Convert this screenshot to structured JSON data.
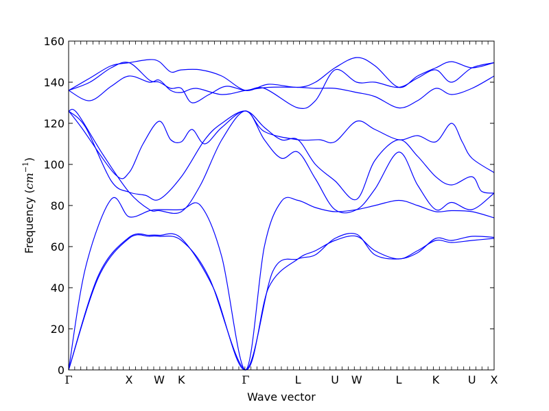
{
  "chart_data": {
    "type": "line",
    "title": "",
    "xlabel": "Wave vector",
    "ylabel": {
      "prefix": "Frequency (",
      "unit_base": "cm",
      "unit_exp": "−1",
      "suffix": ")"
    },
    "ylim": [
      0,
      160
    ],
    "xlim": [
      0,
      1
    ],
    "yticks": [
      0,
      20,
      40,
      60,
      80,
      100,
      120,
      140,
      160
    ],
    "grid": false,
    "legend": "none",
    "line_color": "#0000ff",
    "high_symmetry_points": [
      {
        "label": "Γ",
        "x": 0.0
      },
      {
        "label": "X",
        "x": 0.142
      },
      {
        "label": "W",
        "x": 0.213
      },
      {
        "label": "K",
        "x": 0.265
      },
      {
        "label": "Γ",
        "x": 0.416
      },
      {
        "label": "L",
        "x": 0.539
      },
      {
        "label": "U",
        "x": 0.626
      },
      {
        "label": "W",
        "x": 0.677
      },
      {
        "label": "L",
        "x": 0.776
      },
      {
        "label": "K",
        "x": 0.863
      },
      {
        "label": "U",
        "x": 0.948
      },
      {
        "label": "X",
        "x": 1.0
      }
    ],
    "series": [
      {
        "values": [
          [
            0,
            0
          ],
          [
            0.07,
            45
          ],
          [
            0.142,
            64
          ],
          [
            0.19,
            65
          ],
          [
            0.213,
            65
          ],
          [
            0.265,
            63
          ],
          [
            0.33,
            45
          ],
          [
            0.416,
            0
          ],
          [
            0.47,
            40
          ],
          [
            0.539,
            54
          ],
          [
            0.58,
            58
          ],
          [
            0.626,
            63
          ],
          [
            0.677,
            65
          ],
          [
            0.72,
            58
          ],
          [
            0.776,
            54
          ],
          [
            0.82,
            58
          ],
          [
            0.863,
            63
          ],
          [
            0.9,
            62
          ],
          [
            0.948,
            63
          ],
          [
            1.0,
            64
          ]
        ]
      },
      {
        "values": [
          [
            0,
            0
          ],
          [
            0.07,
            46
          ],
          [
            0.142,
            64.5
          ],
          [
            0.19,
            65.5
          ],
          [
            0.213,
            65.5
          ],
          [
            0.265,
            64
          ],
          [
            0.34,
            40
          ],
          [
            0.416,
            0
          ],
          [
            0.48,
            48
          ],
          [
            0.539,
            54
          ],
          [
            0.58,
            56
          ],
          [
            0.626,
            64
          ],
          [
            0.677,
            66
          ],
          [
            0.72,
            56
          ],
          [
            0.776,
            54
          ],
          [
            0.82,
            57
          ],
          [
            0.863,
            64
          ],
          [
            0.9,
            63
          ],
          [
            0.948,
            65
          ],
          [
            1.0,
            64.5
          ]
        ]
      },
      {
        "values": [
          [
            0,
            0
          ],
          [
            0.04,
            50
          ],
          [
            0.1,
            83
          ],
          [
            0.142,
            74.5
          ],
          [
            0.19,
            77.5
          ],
          [
            0.213,
            78
          ],
          [
            0.265,
            78
          ],
          [
            0.31,
            80
          ],
          [
            0.36,
            55
          ],
          [
            0.416,
            0
          ],
          [
            0.46,
            60
          ],
          [
            0.5,
            82
          ],
          [
            0.539,
            82.5
          ],
          [
            0.58,
            79
          ],
          [
            0.626,
            77
          ],
          [
            0.677,
            78
          ],
          [
            0.72,
            80
          ],
          [
            0.776,
            82.5
          ],
          [
            0.82,
            80
          ],
          [
            0.863,
            77
          ],
          [
            0.9,
            77.5
          ],
          [
            0.948,
            77
          ],
          [
            1.0,
            74
          ]
        ]
      },
      {
        "values": [
          [
            0,
            126
          ],
          [
            0.02,
            125
          ],
          [
            0.08,
            105
          ],
          [
            0.142,
            86.5
          ],
          [
            0.19,
            78
          ],
          [
            0.213,
            77.5
          ],
          [
            0.265,
            77
          ],
          [
            0.31,
            90
          ],
          [
            0.36,
            112
          ],
          [
            0.416,
            126
          ],
          [
            0.46,
            112
          ],
          [
            0.5,
            103
          ],
          [
            0.539,
            106
          ],
          [
            0.58,
            93
          ],
          [
            0.626,
            78
          ],
          [
            0.677,
            78
          ],
          [
            0.72,
            88
          ],
          [
            0.776,
            106
          ],
          [
            0.82,
            90
          ],
          [
            0.863,
            78
          ],
          [
            0.9,
            81.5
          ],
          [
            0.948,
            78
          ],
          [
            1.0,
            86
          ]
        ]
      },
      {
        "values": [
          [
            0,
            126
          ],
          [
            0.03,
            118
          ],
          [
            0.11,
            95
          ],
          [
            0.142,
            96
          ],
          [
            0.175,
            110
          ],
          [
            0.213,
            121
          ],
          [
            0.24,
            112
          ],
          [
            0.265,
            111
          ],
          [
            0.29,
            117
          ],
          [
            0.32,
            110
          ],
          [
            0.36,
            118
          ],
          [
            0.416,
            126
          ],
          [
            0.46,
            116
          ],
          [
            0.539,
            112
          ],
          [
            0.59,
            112
          ],
          [
            0.626,
            111
          ],
          [
            0.677,
            121
          ],
          [
            0.72,
            117
          ],
          [
            0.776,
            112
          ],
          [
            0.82,
            114
          ],
          [
            0.863,
            111
          ],
          [
            0.9,
            120
          ],
          [
            0.925,
            111
          ],
          [
            0.948,
            103
          ],
          [
            1.0,
            96
          ]
        ]
      },
      {
        "values": [
          [
            0,
            126
          ],
          [
            0.04,
            118
          ],
          [
            0.1,
            92
          ],
          [
            0.142,
            86.5
          ],
          [
            0.18,
            85
          ],
          [
            0.213,
            83
          ],
          [
            0.265,
            94
          ],
          [
            0.32,
            112
          ],
          [
            0.36,
            120
          ],
          [
            0.416,
            126
          ],
          [
            0.46,
            118
          ],
          [
            0.5,
            112
          ],
          [
            0.539,
            112
          ],
          [
            0.58,
            100
          ],
          [
            0.626,
            92
          ],
          [
            0.677,
            83
          ],
          [
            0.72,
            102
          ],
          [
            0.776,
            112
          ],
          [
            0.82,
            104
          ],
          [
            0.863,
            94
          ],
          [
            0.9,
            90
          ],
          [
            0.948,
            94
          ],
          [
            0.97,
            87
          ],
          [
            1.0,
            86
          ]
        ]
      },
      {
        "values": [
          [
            0,
            136
          ],
          [
            0.05,
            131
          ],
          [
            0.1,
            138
          ],
          [
            0.142,
            143
          ],
          [
            0.19,
            140
          ],
          [
            0.213,
            141
          ],
          [
            0.24,
            136
          ],
          [
            0.265,
            135
          ],
          [
            0.3,
            137
          ],
          [
            0.36,
            134
          ],
          [
            0.416,
            136
          ],
          [
            0.47,
            137.5
          ],
          [
            0.539,
            137.5
          ],
          [
            0.58,
            137
          ],
          [
            0.626,
            137
          ],
          [
            0.677,
            135
          ],
          [
            0.72,
            133
          ],
          [
            0.776,
            127.5
          ],
          [
            0.82,
            131
          ],
          [
            0.863,
            137
          ],
          [
            0.9,
            134
          ],
          [
            0.948,
            137
          ],
          [
            1.0,
            143
          ]
        ]
      },
      {
        "values": [
          [
            0,
            136
          ],
          [
            0.05,
            140
          ],
          [
            0.1,
            147
          ],
          [
            0.142,
            149.5
          ],
          [
            0.19,
            141
          ],
          [
            0.213,
            140
          ],
          [
            0.24,
            137
          ],
          [
            0.265,
            137
          ],
          [
            0.29,
            130
          ],
          [
            0.33,
            134
          ],
          [
            0.37,
            138
          ],
          [
            0.416,
            136
          ],
          [
            0.46,
            137
          ],
          [
            0.539,
            127.5
          ],
          [
            0.58,
            131
          ],
          [
            0.626,
            146
          ],
          [
            0.677,
            140
          ],
          [
            0.72,
            140
          ],
          [
            0.776,
            137.5
          ],
          [
            0.82,
            142
          ],
          [
            0.863,
            146
          ],
          [
            0.9,
            140
          ],
          [
            0.948,
            147
          ],
          [
            1.0,
            149.5
          ]
        ]
      },
      {
        "values": [
          [
            0,
            136
          ],
          [
            0.05,
            142
          ],
          [
            0.1,
            148
          ],
          [
            0.142,
            149.5
          ],
          [
            0.19,
            151
          ],
          [
            0.213,
            150
          ],
          [
            0.24,
            145
          ],
          [
            0.265,
            146
          ],
          [
            0.31,
            146
          ],
          [
            0.36,
            143
          ],
          [
            0.416,
            136
          ],
          [
            0.47,
            139
          ],
          [
            0.539,
            137.5
          ],
          [
            0.58,
            140
          ],
          [
            0.626,
            147
          ],
          [
            0.677,
            152
          ],
          [
            0.72,
            148
          ],
          [
            0.776,
            137.5
          ],
          [
            0.82,
            143
          ],
          [
            0.863,
            147
          ],
          [
            0.9,
            150
          ],
          [
            0.948,
            147
          ],
          [
            1.0,
            149.5
          ]
        ]
      }
    ]
  }
}
